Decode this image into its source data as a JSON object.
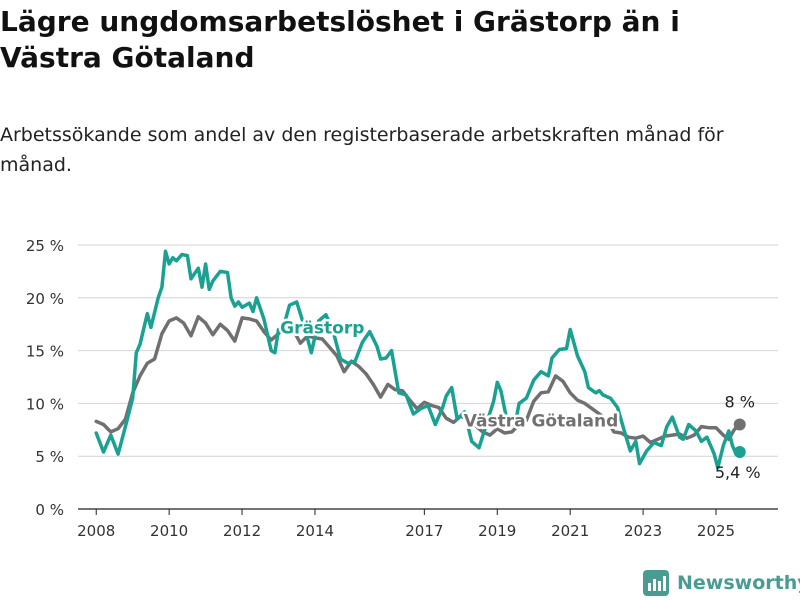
{
  "title": "Lägre ungdomsarbetslöshet i Grästorp än i Västra Götaland",
  "subtitle": "Arbetssökande som andel av den registerbaserade arbetskraften månad för månad.",
  "brand": {
    "name": "Newsworthy",
    "color": "#4a9c92"
  },
  "chart_data": {
    "type": "line",
    "title": "Lägre ungdomsarbetslöshet i Grästorp än i Västra Götaland",
    "subtitle": "Arbetssökande som andel av den registerbaserade arbetskraften månad för månad.",
    "xlabel": "",
    "ylabel": "",
    "xlim": [
      2007.5,
      2026.7
    ],
    "ylim": [
      0,
      25
    ],
    "grid": true,
    "legend": "inline labels",
    "y_ticks": [
      {
        "value": 0,
        "label": "0 %"
      },
      {
        "value": 5,
        "label": "5 %"
      },
      {
        "value": 10,
        "label": "10 %"
      },
      {
        "value": 15,
        "label": "15 %"
      },
      {
        "value": 20,
        "label": "20 %"
      },
      {
        "value": 25,
        "label": "25 %"
      }
    ],
    "x_ticks": [
      {
        "value": 2008,
        "label": "2008"
      },
      {
        "value": 2010,
        "label": "2010"
      },
      {
        "value": 2012,
        "label": "2012"
      },
      {
        "value": 2014,
        "label": "2014"
      },
      {
        "value": 2017,
        "label": "2017"
      },
      {
        "value": 2019,
        "label": "2019"
      },
      {
        "value": 2021,
        "label": "2021"
      },
      {
        "value": 2023,
        "label": "2023"
      },
      {
        "value": 2025,
        "label": "2025"
      }
    ],
    "series": [
      {
        "name": "Västra Götaland",
        "color": "#707070",
        "end_label": "8 %",
        "points": [
          [
            2008.0,
            8.3
          ],
          [
            2008.2,
            8.0
          ],
          [
            2008.4,
            7.3
          ],
          [
            2008.6,
            7.6
          ],
          [
            2008.8,
            8.5
          ],
          [
            2009.0,
            11.0
          ],
          [
            2009.2,
            12.6
          ],
          [
            2009.4,
            13.8
          ],
          [
            2009.6,
            14.2
          ],
          [
            2009.8,
            16.6
          ],
          [
            2010.0,
            17.8
          ],
          [
            2010.2,
            18.1
          ],
          [
            2010.4,
            17.6
          ],
          [
            2010.6,
            16.4
          ],
          [
            2010.8,
            18.2
          ],
          [
            2011.0,
            17.6
          ],
          [
            2011.2,
            16.5
          ],
          [
            2011.4,
            17.5
          ],
          [
            2011.6,
            16.9
          ],
          [
            2011.8,
            15.9
          ],
          [
            2012.0,
            18.1
          ],
          [
            2012.2,
            18.0
          ],
          [
            2012.4,
            17.8
          ],
          [
            2012.6,
            16.8
          ],
          [
            2012.8,
            16.0
          ],
          [
            2013.0,
            16.6
          ],
          [
            2013.2,
            17.5
          ],
          [
            2013.4,
            17.0
          ],
          [
            2013.6,
            15.7
          ],
          [
            2013.8,
            16.4
          ],
          [
            2014.0,
            16.2
          ],
          [
            2014.2,
            16.1
          ],
          [
            2014.4,
            15.3
          ],
          [
            2014.6,
            14.5
          ],
          [
            2014.8,
            13.0
          ],
          [
            2015.0,
            14.0
          ],
          [
            2015.2,
            13.5
          ],
          [
            2015.4,
            12.8
          ],
          [
            2015.6,
            11.8
          ],
          [
            2015.8,
            10.6
          ],
          [
            2016.0,
            11.8
          ],
          [
            2016.2,
            11.3
          ],
          [
            2016.4,
            11.2
          ],
          [
            2016.6,
            10.3
          ],
          [
            2016.8,
            9.5
          ],
          [
            2017.0,
            10.1
          ],
          [
            2017.2,
            9.8
          ],
          [
            2017.4,
            9.6
          ],
          [
            2017.6,
            8.6
          ],
          [
            2017.8,
            8.2
          ],
          [
            2018.0,
            8.8
          ],
          [
            2018.2,
            8.4
          ],
          [
            2018.4,
            7.9
          ],
          [
            2018.6,
            7.3
          ],
          [
            2018.8,
            7.0
          ],
          [
            2019.0,
            7.6
          ],
          [
            2019.2,
            7.2
          ],
          [
            2019.4,
            7.3
          ],
          [
            2019.6,
            8.0
          ],
          [
            2019.8,
            8.4
          ],
          [
            2020.0,
            10.2
          ],
          [
            2020.2,
            11.0
          ],
          [
            2020.4,
            11.1
          ],
          [
            2020.6,
            12.6
          ],
          [
            2020.8,
            12.1
          ],
          [
            2021.0,
            11.0
          ],
          [
            2021.2,
            10.3
          ],
          [
            2021.4,
            10.0
          ],
          [
            2021.6,
            9.5
          ],
          [
            2021.8,
            9.0
          ],
          [
            2022.0,
            8.5
          ],
          [
            2022.2,
            7.3
          ],
          [
            2022.4,
            7.2
          ],
          [
            2022.6,
            6.8
          ],
          [
            2022.8,
            6.7
          ],
          [
            2023.0,
            6.9
          ],
          [
            2023.2,
            6.3
          ],
          [
            2023.4,
            6.6
          ],
          [
            2023.6,
            6.9
          ],
          [
            2023.8,
            7.0
          ],
          [
            2024.0,
            7.1
          ],
          [
            2024.2,
            6.7
          ],
          [
            2024.4,
            7.0
          ],
          [
            2024.6,
            7.8
          ],
          [
            2024.8,
            7.7
          ],
          [
            2025.0,
            7.7
          ],
          [
            2025.2,
            7.0
          ],
          [
            2025.35,
            6.6
          ],
          [
            2025.5,
            7.5
          ],
          [
            2025.65,
            8.0
          ]
        ]
      },
      {
        "name": "Grästorp",
        "color": "#1aa192",
        "end_label": "5,4 %",
        "points": [
          [
            2008.0,
            7.2
          ],
          [
            2008.2,
            5.4
          ],
          [
            2008.4,
            7.0
          ],
          [
            2008.6,
            5.2
          ],
          [
            2008.8,
            7.8
          ],
          [
            2009.0,
            10.5
          ],
          [
            2009.1,
            14.8
          ],
          [
            2009.2,
            15.6
          ],
          [
            2009.4,
            18.5
          ],
          [
            2009.5,
            17.2
          ],
          [
            2009.7,
            20.0
          ],
          [
            2009.8,
            21.0
          ],
          [
            2009.9,
            24.4
          ],
          [
            2010.0,
            23.2
          ],
          [
            2010.1,
            23.8
          ],
          [
            2010.2,
            23.5
          ],
          [
            2010.35,
            24.1
          ],
          [
            2010.5,
            24.0
          ],
          [
            2010.6,
            21.8
          ],
          [
            2010.8,
            22.8
          ],
          [
            2010.9,
            21.0
          ],
          [
            2011.0,
            23.2
          ],
          [
            2011.1,
            20.8
          ],
          [
            2011.2,
            21.6
          ],
          [
            2011.4,
            22.5
          ],
          [
            2011.6,
            22.4
          ],
          [
            2011.7,
            20.0
          ],
          [
            2011.8,
            19.2
          ],
          [
            2011.9,
            19.6
          ],
          [
            2012.0,
            19.1
          ],
          [
            2012.2,
            19.5
          ],
          [
            2012.3,
            18.7
          ],
          [
            2012.4,
            20.0
          ],
          [
            2012.6,
            18.0
          ],
          [
            2012.8,
            15.0
          ],
          [
            2012.9,
            14.8
          ],
          [
            2013.0,
            17.0
          ],
          [
            2013.1,
            16.8
          ],
          [
            2013.3,
            19.3
          ],
          [
            2013.5,
            19.6
          ],
          [
            2013.7,
            17.4
          ],
          [
            2013.9,
            14.8
          ],
          [
            2014.1,
            17.8
          ],
          [
            2014.3,
            18.4
          ],
          [
            2014.5,
            16.8
          ],
          [
            2014.7,
            14.2
          ],
          [
            2014.9,
            13.8
          ],
          [
            2015.1,
            14.0
          ],
          [
            2015.3,
            15.8
          ],
          [
            2015.5,
            16.8
          ],
          [
            2015.7,
            15.4
          ],
          [
            2015.8,
            14.2
          ],
          [
            2015.95,
            14.3
          ],
          [
            2016.1,
            15.0
          ],
          [
            2016.3,
            11.0
          ],
          [
            2016.5,
            10.8
          ],
          [
            2016.7,
            9.0
          ],
          [
            2016.9,
            9.5
          ],
          [
            2017.1,
            9.8
          ],
          [
            2017.3,
            8.0
          ],
          [
            2017.5,
            9.6
          ],
          [
            2017.6,
            10.7
          ],
          [
            2017.75,
            11.5
          ],
          [
            2017.9,
            8.5
          ],
          [
            2018.1,
            9.2
          ],
          [
            2018.3,
            6.4
          ],
          [
            2018.5,
            5.8
          ],
          [
            2018.7,
            8.0
          ],
          [
            2018.9,
            10.2
          ],
          [
            2019.0,
            12.0
          ],
          [
            2019.1,
            11.2
          ],
          [
            2019.3,
            7.8
          ],
          [
            2019.5,
            8.2
          ],
          [
            2019.6,
            10.0
          ],
          [
            2019.8,
            10.5
          ],
          [
            2020.0,
            12.2
          ],
          [
            2020.2,
            13.0
          ],
          [
            2020.4,
            12.6
          ],
          [
            2020.5,
            14.3
          ],
          [
            2020.7,
            15.1
          ],
          [
            2020.9,
            15.2
          ],
          [
            2021.0,
            17.0
          ],
          [
            2021.2,
            14.5
          ],
          [
            2021.4,
            13.0
          ],
          [
            2021.5,
            11.5
          ],
          [
            2021.7,
            11.0
          ],
          [
            2021.8,
            11.2
          ],
          [
            2021.9,
            10.8
          ],
          [
            2022.1,
            10.5
          ],
          [
            2022.3,
            9.6
          ],
          [
            2022.5,
            7.2
          ],
          [
            2022.65,
            5.5
          ],
          [
            2022.8,
            6.4
          ],
          [
            2022.9,
            4.3
          ],
          [
            2023.1,
            5.5
          ],
          [
            2023.3,
            6.3
          ],
          [
            2023.5,
            6.0
          ],
          [
            2023.65,
            7.8
          ],
          [
            2023.8,
            8.7
          ],
          [
            2024.0,
            6.8
          ],
          [
            2024.1,
            6.6
          ],
          [
            2024.25,
            8.0
          ],
          [
            2024.45,
            7.4
          ],
          [
            2024.6,
            6.4
          ],
          [
            2024.75,
            6.8
          ],
          [
            2024.85,
            6.0
          ],
          [
            2024.95,
            5.2
          ],
          [
            2025.05,
            3.9
          ],
          [
            2025.2,
            6.0
          ],
          [
            2025.35,
            7.4
          ],
          [
            2025.45,
            6.0
          ],
          [
            2025.55,
            5.2
          ],
          [
            2025.65,
            5.4
          ]
        ]
      }
    ],
    "annotations": [
      {
        "series": "Grästorp",
        "text": "Grästorp",
        "x": 2014.2,
        "y": 16.6
      },
      {
        "series": "Västra Götaland",
        "text": "Västra Götaland",
        "x": 2020.2,
        "y": 7.8
      }
    ]
  }
}
